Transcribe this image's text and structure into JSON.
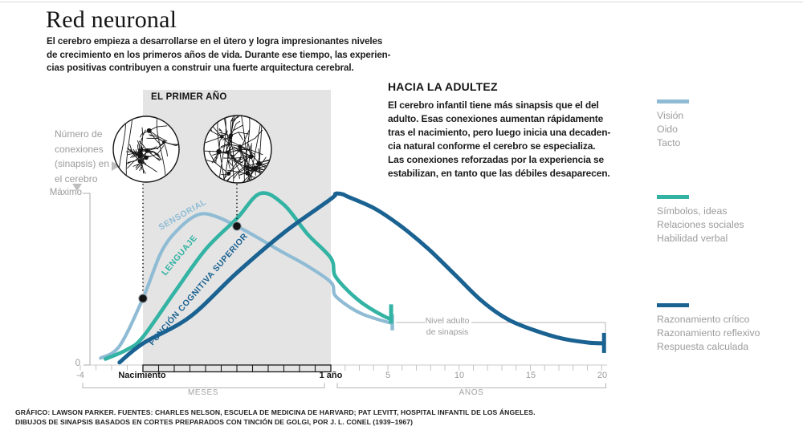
{
  "header": {
    "title": "Red neuronal",
    "intro_lines": [
      "El cerebro empieza a desarrollarse en el útero y logra impresionantes niveles",
      "de crecimiento en los primeros años de vida. Durante ese tiempo, las experien-",
      "cias positivas contribuyen a construir una fuerte arquitectura cerebral."
    ]
  },
  "adulthood": {
    "heading": "HACIA LA ADULTEZ",
    "lines": [
      "El cerebro infantil tiene más sinapsis que el del",
      "adulto. Esas conexiones aumentan rápidamente",
      "tras el nacimiento, pero luego inicia una decaden-",
      "cia natural conforme el cerebro se especializa.",
      "Las conexiones reforzadas por la experiencia se",
      "estabilizan, en tanto que las débiles desaparecen."
    ]
  },
  "first_year_label": "EL PRIMER AÑO",
  "y_axis_label_lines": [
    "Número de",
    "conexiones",
    "(sinapsis) en",
    "el cerebro"
  ],
  "y_axis": {
    "max_label": "Máximo",
    "zero_label": "0"
  },
  "x_axis": {
    "minus4": "-4",
    "birth": "Nacimiento",
    "one_year": "1 año",
    "year_ticks": [
      "5",
      "10",
      "15",
      "20"
    ],
    "months_unit": "MESES",
    "years_unit": "AÑOS"
  },
  "adult_level": {
    "line1": "Nivel adulto",
    "line2": "de sinapsis"
  },
  "credits": {
    "line1": "GRÁFICO: LAWSON PARKER. FUENTES: CHARLES NELSON, ESCUELA DE MEDICINA DE HARVARD; PAT LEVITT, HOSPITAL INFANTIL DE LOS ÁNGELES.",
    "line2": "DIBUJOS DE SINAPSIS BASADOS EN CORTES PREPARADOS CON TINCIÓN DE GOLGI, POR J. L. CONEL (1939–1967)"
  },
  "colors": {
    "shade": "#E4E4E4",
    "muted_text": "#9B9B9B",
    "dark_text": "#1A1A1A",
    "axis_light": "#C4C4C4",
    "axis_mid": "#ABABAB",
    "bracket": "#B5B5B5"
  },
  "chart_data": {
    "type": "line",
    "title": "Número de conexiones (sinapsis) en el cerebro",
    "x_axis": {
      "months_label": "MESES",
      "years_label": "AÑOS",
      "month_range": [
        -4,
        12
      ],
      "year_range": [
        1,
        20
      ],
      "tick_labels": [
        "-4",
        "Nacimiento",
        "1 año",
        "5",
        "10",
        "15",
        "20"
      ]
    },
    "y_axis": {
      "min_label": "0",
      "max_label": "Máximo",
      "range_percent": [
        0,
        100
      ]
    },
    "shaded_region": {
      "label": "EL PRIMER AÑO",
      "from_month": 0,
      "to_month": 12
    },
    "adult_level_label": "Nivel adulto de sinapsis",
    "series": [
      {
        "id": "sensorial",
        "label": "SENSORIAL",
        "color": "#8FBCD4",
        "legend": [
          "Visión",
          "Oido",
          "Tacto"
        ],
        "points_month_value": [
          [
            -2.7,
            4
          ],
          [
            -1.5,
            11
          ],
          [
            0,
            38.6
          ],
          [
            1.2,
            66
          ],
          [
            2.4,
            80
          ],
          [
            3.6,
            87.4
          ],
          [
            4.7,
            86
          ],
          [
            6,
            80.5
          ],
          [
            7.3,
            74
          ],
          [
            8.8,
            66
          ],
          [
            10.4,
            58
          ],
          [
            12,
            48
          ],
          [
            15.4,
            40.5
          ],
          [
            26,
            34.4
          ],
          [
            37.7,
            29.8
          ],
          [
            49,
            27
          ],
          [
            58,
            25.2
          ],
          [
            63.4,
            24.3
          ]
        ]
      },
      {
        "id": "lenguaje",
        "label": "LENGUAJE",
        "color": "#33B3A3",
        "legend": [
          "Símbolos, ideas",
          "Relaciones sociales",
          "Habilidad verbal"
        ],
        "points_month_value": [
          [
            -2.4,
            3.5
          ],
          [
            -1,
            9
          ],
          [
            0,
            16.3
          ],
          [
            2,
            42
          ],
          [
            4,
            67
          ],
          [
            6,
            85
          ],
          [
            7.5,
            99.5
          ],
          [
            9,
            93
          ],
          [
            10.5,
            76
          ],
          [
            12,
            62
          ],
          [
            15.4,
            52
          ],
          [
            26,
            43.3
          ],
          [
            37.7,
            36.3
          ],
          [
            49,
            31.2
          ],
          [
            58,
            27.9
          ],
          [
            61.4,
            26.8
          ]
        ]
      },
      {
        "id": "funcion",
        "label": "FUNCIÓN COGNITIVA SUPERIOR",
        "color": "#1A6291",
        "legend": [
          "Razonamiento crítico",
          "Razonamiento reflexivo",
          "Respuesta calculada"
        ],
        "points_month_value": [
          [
            -1.5,
            1.5
          ],
          [
            0,
            12.5
          ],
          [
            3,
            27.9
          ],
          [
            6,
            53.5
          ],
          [
            9,
            76.7
          ],
          [
            12,
            96.3
          ],
          [
            16,
            99.3
          ],
          [
            22,
            99
          ],
          [
            26,
            97.7
          ],
          [
            49,
            90.7
          ],
          [
            71,
            80.5
          ],
          [
            94,
            67.4
          ],
          [
            117,
            52
          ],
          [
            139,
            37.2
          ],
          [
            161,
            26.5
          ],
          [
            184,
            20
          ],
          [
            207,
            15.3
          ],
          [
            229,
            13
          ],
          [
            242,
            12.6
          ]
        ]
      }
    ],
    "markers": [
      {
        "series": "sensorial",
        "month": 0,
        "value": 38.6
      },
      {
        "series": "sensorial",
        "month": 6,
        "value": 80.5
      }
    ]
  }
}
